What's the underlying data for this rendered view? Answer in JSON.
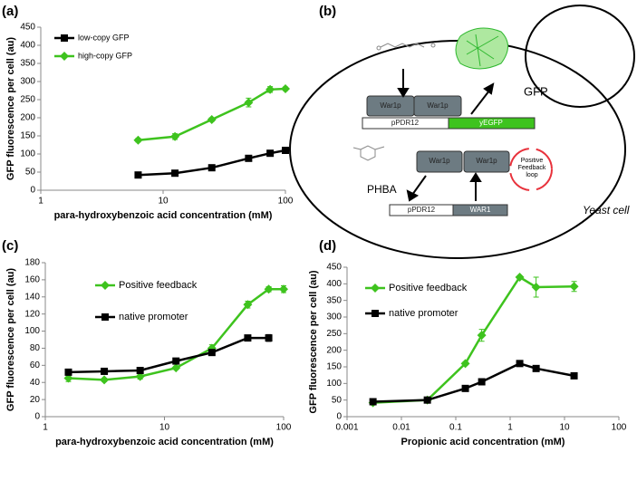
{
  "chart_data": [
    {
      "type": "line",
      "label": "(a)",
      "x_label": "para-hydroxybenzoic acid concentration (mM)",
      "y_label": "GFP fluorescence per cell (au)",
      "x": [
        6.25,
        12.5,
        25,
        50,
        75,
        100
      ],
      "x_scale": "log",
      "xlim": [
        1,
        100
      ],
      "xticks": [
        1,
        10,
        100
      ],
      "ylim": [
        0,
        450
      ],
      "yticks": [
        0,
        50,
        100,
        150,
        200,
        250,
        300,
        350,
        400,
        450
      ],
      "grid": false,
      "legend": "upper left",
      "series": [
        {
          "name": "low-copy GFP",
          "color": "#000000",
          "marker": "square",
          "values": [
            42,
            47,
            62,
            88,
            102,
            110
          ],
          "errors": [
            3,
            3,
            5,
            5,
            5,
            5
          ]
        },
        {
          "name": "high-copy GFP",
          "color": "#3ec31e",
          "marker": "diamond",
          "values": [
            138,
            148,
            195,
            242,
            278,
            280
          ],
          "errors": [
            5,
            8,
            5,
            12,
            8,
            5
          ]
        }
      ]
    },
    {
      "type": "line",
      "label": "(c)",
      "x_label": "para-hydroxybenzoic acid concentration (mM)",
      "y_label": "GFP fluorescence per cell (au)",
      "x": [
        1.5625,
        3.125,
        6.25,
        12.5,
        25,
        50,
        75,
        100
      ],
      "x_scale": "log",
      "xlim": [
        1,
        100
      ],
      "xticks": [
        1,
        10,
        100
      ],
      "ylim": [
        0,
        180
      ],
      "yticks": [
        0,
        20,
        40,
        60,
        80,
        100,
        120,
        140,
        160,
        180
      ],
      "grid": false,
      "legend": "upper left",
      "series": [
        {
          "name": "Positive feedback",
          "color": "#3ec31e",
          "marker": "diamond",
          "values": [
            45,
            43,
            47,
            57,
            80,
            131,
            149,
            149
          ],
          "errors": [
            4,
            2,
            3,
            2,
            4,
            4,
            3,
            4
          ]
        },
        {
          "name": "native promoter",
          "color": "#000000",
          "marker": "square",
          "values": [
            52,
            53,
            54,
            65,
            75,
            92,
            92,
            null
          ],
          "errors": [
            3,
            2,
            2,
            2,
            2,
            2,
            4,
            null
          ]
        }
      ]
    },
    {
      "type": "line",
      "label": "(d)",
      "x_label": "Propionic acid concentration (mM)",
      "y_label": "GFP fluorescence per cell (au)",
      "x": [
        0.003,
        0.03,
        0.15,
        0.3,
        1.5,
        3,
        15
      ],
      "x_scale": "log",
      "xlim": [
        0.001,
        100
      ],
      "xticks": [
        0.001,
        0.01,
        0.1,
        1,
        10,
        100
      ],
      "ylim": [
        0,
        450
      ],
      "yticks": [
        0,
        50,
        100,
        150,
        200,
        250,
        300,
        350,
        400,
        450
      ],
      "grid": false,
      "legend": "upper left",
      "series": [
        {
          "name": "Positive feedback",
          "color": "#3ec31e",
          "marker": "diamond",
          "values": [
            42,
            50,
            160,
            245,
            420,
            390,
            392
          ],
          "errors": [
            5,
            3,
            5,
            18,
            3,
            30,
            15
          ]
        },
        {
          "name": "native promoter",
          "color": "#000000",
          "marker": "square",
          "values": [
            45,
            50,
            85,
            105,
            160,
            145,
            123
          ],
          "errors": [
            3,
            2,
            3,
            3,
            3,
            3,
            3
          ]
        }
      ]
    }
  ],
  "diagram": {
    "label": "(b)",
    "protein": "War1p",
    "promoter": "pPDR12",
    "reporter": "yEGFP",
    "product": "GFP",
    "inducer": "PHBA",
    "gene": "WAR1",
    "loop": "Positive Feedback loop",
    "cell": "Yeast cell"
  }
}
